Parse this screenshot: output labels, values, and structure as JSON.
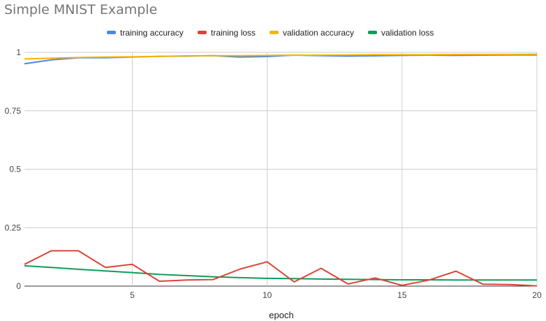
{
  "chart_data": {
    "type": "line",
    "title": "Simple MNIST Example",
    "xlabel": "epoch",
    "ylabel": "",
    "xlim": [
      1,
      20
    ],
    "ylim": [
      0,
      1
    ],
    "x_ticks": [
      5,
      10,
      15,
      20
    ],
    "y_ticks": [
      {
        "value": 0,
        "label": "0"
      },
      {
        "value": 0.25,
        "label": "0.25"
      },
      {
        "value": 0.5,
        "label": "0.5"
      },
      {
        "value": 0.75,
        "label": "0.75"
      },
      {
        "value": 1,
        "label": "1"
      }
    ],
    "grid": true,
    "legend_position": "top",
    "x": [
      1,
      2,
      3,
      4,
      5,
      6,
      7,
      8,
      9,
      10,
      11,
      12,
      13,
      14,
      15,
      16,
      17,
      18,
      19,
      20
    ],
    "series": [
      {
        "name": "training accuracy",
        "color": "#4a86e8",
        "values": [
          0.951,
          0.968,
          0.977,
          0.977,
          0.98,
          0.983,
          0.984,
          0.986,
          0.98,
          0.982,
          0.988,
          0.986,
          0.984,
          0.985,
          0.987,
          0.988,
          0.987,
          0.988,
          0.989,
          0.989
        ]
      },
      {
        "name": "training loss",
        "color": "#db4437",
        "values": [
          0.093,
          0.151,
          0.151,
          0.08,
          0.093,
          0.021,
          0.026,
          0.028,
          0.073,
          0.104,
          0.018,
          0.076,
          0.009,
          0.035,
          0.003,
          0.026,
          0.064,
          0.008,
          0.007,
          0.001
        ]
      },
      {
        "name": "validation accuracy",
        "color": "#f4b400",
        "values": [
          0.972,
          0.975,
          0.978,
          0.98,
          0.981,
          0.983,
          0.985,
          0.986,
          0.986,
          0.987,
          0.988,
          0.988,
          0.989,
          0.99,
          0.99,
          0.99,
          0.991,
          0.991,
          0.991,
          0.992
        ]
      },
      {
        "name": "validation loss",
        "color": "#0f9d58",
        "values": [
          0.087,
          0.08,
          0.072,
          0.065,
          0.058,
          0.05,
          0.045,
          0.04,
          0.036,
          0.033,
          0.032,
          0.03,
          0.029,
          0.028,
          0.027,
          0.027,
          0.026,
          0.026,
          0.026,
          0.026
        ]
      }
    ]
  }
}
